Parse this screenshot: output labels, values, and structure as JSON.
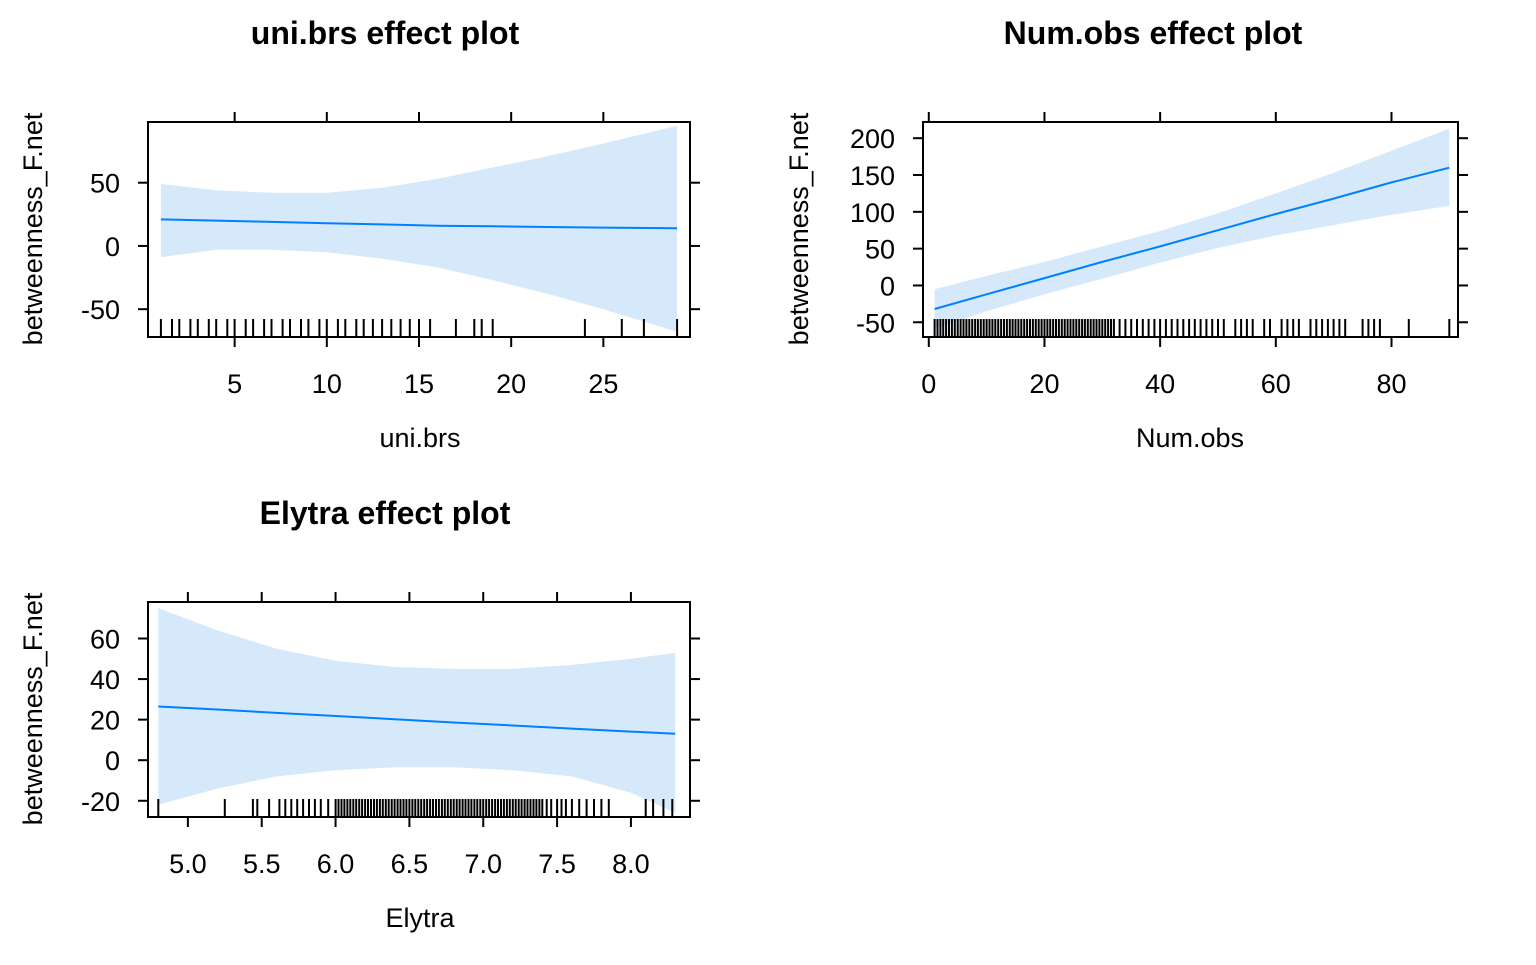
{
  "chart_data": [
    {
      "type": "line",
      "title": "uni.brs effect plot",
      "xlabel": "uni.brs",
      "ylabel": "betweenness_F.net",
      "xlim": [
        0.3,
        29.7
      ],
      "ylim": [
        -72,
        98
      ],
      "xticks": [
        5,
        10,
        15,
        20,
        25
      ],
      "yticks": [
        -50,
        0,
        50
      ],
      "colors": {
        "line": "#0080ff",
        "band": "#d6e9fb",
        "rug": "#000000"
      },
      "series": [
        {
          "x": [
            1,
            4,
            7,
            10,
            13,
            16,
            19,
            22,
            25,
            29
          ],
          "values": [
            21,
            20,
            19,
            18,
            17,
            16,
            15.5,
            15,
            14.5,
            14
          ],
          "lower": [
            -9,
            -3,
            -3,
            -5,
            -10,
            -17,
            -27,
            -38,
            -50,
            -68
          ],
          "upper": [
            49,
            44,
            42,
            42,
            46,
            53,
            62,
            71,
            81,
            95
          ]
        }
      ],
      "rug": [
        1,
        1.6,
        2,
        2.6,
        3,
        3.6,
        4,
        4.6,
        5,
        5.6,
        6,
        6.6,
        7,
        7.6,
        8,
        8.6,
        9,
        9.6,
        10,
        10.6,
        11,
        11.6,
        12,
        12.5,
        13,
        13.5,
        14,
        14.5,
        15,
        15.6,
        17,
        18,
        18.4,
        19,
        24,
        26,
        27.2,
        29
      ]
    },
    {
      "type": "line",
      "title": "Num.obs effect plot",
      "xlabel": "Num.obs",
      "ylabel": "betweenness_F.net",
      "xlim": [
        -1,
        91.5
      ],
      "ylim": [
        -70,
        222
      ],
      "xticks": [
        0,
        20,
        40,
        60,
        80
      ],
      "yticks": [
        -50,
        0,
        50,
        100,
        150,
        200
      ],
      "colors": {
        "line": "#0080ff",
        "band": "#d6e9fb",
        "rug": "#000000"
      },
      "series": [
        {
          "x": [
            1,
            10,
            20,
            30,
            40,
            50,
            60,
            70,
            80,
            90
          ],
          "values": [
            -32,
            -12,
            10,
            32,
            53,
            75,
            97,
            118,
            140,
            160
          ],
          "lower": [
            -58,
            -35,
            -12,
            9,
            31,
            51,
            68,
            82,
            96,
            108
          ],
          "upper": [
            -5,
            13,
            32,
            53,
            74,
            98,
            125,
            153,
            183,
            213
          ]
        }
      ],
      "rug": [
        1,
        1.5,
        2,
        2.5,
        3,
        3.5,
        4,
        4.5,
        5,
        5.5,
        6,
        6.5,
        7,
        7.5,
        8,
        8.5,
        9,
        9.5,
        10,
        10.5,
        11,
        11.5,
        12,
        12.5,
        13,
        13.5,
        14,
        14.5,
        15,
        15.5,
        16,
        16.5,
        17,
        17.5,
        18,
        18.5,
        19,
        19.5,
        20,
        20.5,
        21,
        21.5,
        22,
        22.5,
        23,
        23.5,
        24,
        24.5,
        25,
        25.5,
        26,
        26.5,
        27,
        27.5,
        28,
        28.5,
        29,
        29.5,
        30,
        30.5,
        31,
        31.5,
        32,
        33,
        34,
        35,
        36,
        37,
        38,
        39,
        40,
        41,
        42,
        43,
        44,
        45,
        46,
        47,
        48,
        49,
        50,
        51,
        53,
        54,
        55,
        56,
        58,
        59,
        61,
        62,
        63,
        64,
        66,
        67,
        68,
        69,
        70,
        71,
        72,
        75,
        76,
        77,
        78,
        83,
        90
      ]
    },
    {
      "type": "line",
      "title": "Elytra effect plot",
      "xlabel": "Elytra",
      "ylabel": "betweenness_F.net",
      "xlim": [
        4.73,
        8.4
      ],
      "ylim": [
        -28,
        78
      ],
      "xticks": [
        5.0,
        5.5,
        6.0,
        6.5,
        7.0,
        7.5,
        8.0
      ],
      "ytick_labels": [
        "-20",
        "0",
        "20",
        "40",
        "60"
      ],
      "yticks": [
        -20,
        0,
        20,
        40,
        60
      ],
      "xtick_labels": [
        "5.0",
        "5.5",
        "6.0",
        "6.5",
        "7.0",
        "7.5",
        "8.0"
      ],
      "colors": {
        "line": "#0080ff",
        "band": "#d6e9fb",
        "rug": "#000000"
      },
      "series": [
        {
          "x": [
            4.8,
            5.2,
            5.6,
            6.0,
            6.4,
            6.8,
            7.2,
            7.6,
            8.0,
            8.3
          ],
          "values": [
            26.5,
            25,
            23.3,
            21.8,
            20.2,
            18.6,
            17.1,
            15.6,
            14.1,
            13
          ],
          "lower": [
            -22,
            -14,
            -8,
            -5,
            -3.5,
            -3.5,
            -5,
            -8,
            -16,
            -26
          ],
          "upper": [
            75,
            64,
            55,
            49,
            46,
            45,
            45,
            47,
            50,
            53
          ]
        }
      ],
      "rug": [
        4.8,
        5.25,
        5.44,
        5.47,
        5.55,
        5.62,
        5.66,
        5.7,
        5.74,
        5.78,
        5.82,
        5.86,
        5.9,
        5.95,
        6.0,
        6.02,
        6.04,
        6.06,
        6.08,
        6.1,
        6.12,
        6.14,
        6.16,
        6.18,
        6.2,
        6.22,
        6.24,
        6.26,
        6.28,
        6.3,
        6.32,
        6.34,
        6.36,
        6.38,
        6.4,
        6.42,
        6.44,
        6.46,
        6.48,
        6.5,
        6.52,
        6.54,
        6.56,
        6.58,
        6.6,
        6.62,
        6.64,
        6.66,
        6.68,
        6.7,
        6.72,
        6.74,
        6.76,
        6.78,
        6.8,
        6.82,
        6.84,
        6.86,
        6.88,
        6.9,
        6.92,
        6.94,
        6.96,
        6.98,
        7.0,
        7.02,
        7.04,
        7.06,
        7.08,
        7.1,
        7.12,
        7.14,
        7.16,
        7.18,
        7.2,
        7.22,
        7.24,
        7.26,
        7.28,
        7.3,
        7.32,
        7.34,
        7.36,
        7.38,
        7.4,
        7.43,
        7.46,
        7.5,
        7.53,
        7.56,
        7.6,
        7.65,
        7.7,
        7.75,
        7.8,
        7.85,
        8.1,
        8.15,
        8.22,
        8.28
      ]
    }
  ]
}
